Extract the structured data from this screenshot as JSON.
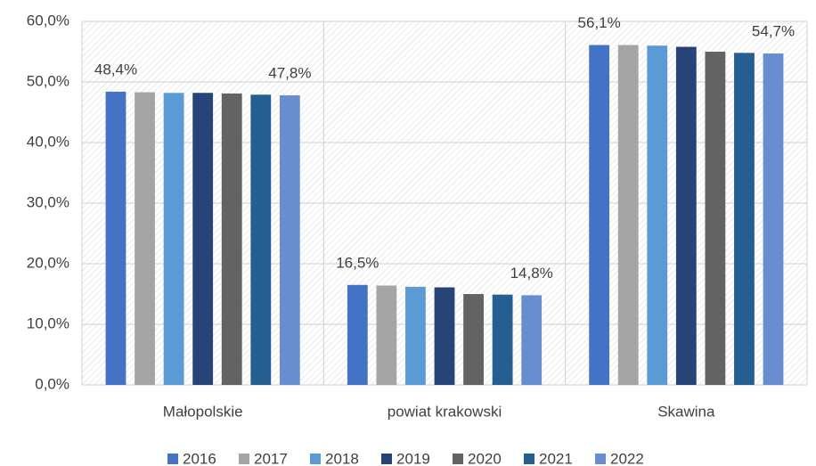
{
  "chart_data": {
    "type": "bar",
    "categories": [
      "Małopolskie",
      "powiat krakowski",
      "Skawina"
    ],
    "series": [
      {
        "name": "2016",
        "color": "#4472c4",
        "values": [
          48.4,
          16.5,
          56.1
        ],
        "value_labels": [
          "48,4%",
          "16,5%",
          "56,1%"
        ]
      },
      {
        "name": "2017",
        "color": "#a5a5a5",
        "values": [
          48.3,
          16.4,
          56.1
        ]
      },
      {
        "name": "2018",
        "color": "#5b9bd5",
        "values": [
          48.2,
          16.2,
          56.0
        ]
      },
      {
        "name": "2019",
        "color": "#264478",
        "values": [
          48.2,
          16.1,
          55.8
        ]
      },
      {
        "name": "2020",
        "color": "#636363",
        "values": [
          48.1,
          15.0,
          55.0
        ]
      },
      {
        "name": "2021",
        "color": "#255e91",
        "values": [
          47.9,
          14.9,
          54.8
        ]
      },
      {
        "name": "2022",
        "color": "#698ed0",
        "values": [
          47.8,
          14.8,
          54.7
        ],
        "value_labels": [
          "47,8%",
          "14,8%",
          "54,7%"
        ]
      }
    ],
    "ylim": [
      0,
      60
    ],
    "yticks": [
      {
        "value": 0,
        "label": "0,0%"
      },
      {
        "value": 10,
        "label": "10,0%"
      },
      {
        "value": 20,
        "label": "20,0%"
      },
      {
        "value": 30,
        "label": "30,0%"
      },
      {
        "value": 40,
        "label": "40,0%"
      },
      {
        "value": 50,
        "label": "50,0%"
      },
      {
        "value": 60,
        "label": "60,0%"
      }
    ],
    "grid": true,
    "legend": "bottom"
  }
}
